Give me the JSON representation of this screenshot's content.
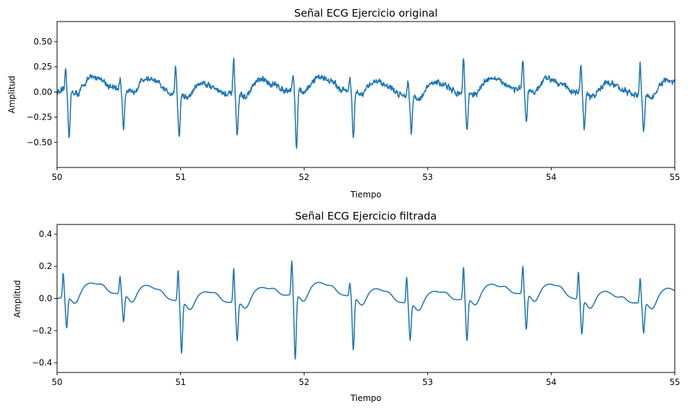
{
  "chart_data": [
    {
      "type": "line",
      "title": "Señal ECG Ejercicio original",
      "xlabel": "Tiempo",
      "ylabel": "Amplitud",
      "xlim": [
        50,
        55
      ],
      "ylim": [
        -0.75,
        0.7
      ],
      "xticks": [
        50,
        51,
        52,
        53,
        54,
        55
      ],
      "yticks": [
        -0.5,
        -0.25,
        0.0,
        0.25,
        0.5
      ],
      "ytick_labels": [
        "−0.50",
        "−0.25",
        "0.00",
        "0.25",
        "0.50"
      ],
      "grid": false,
      "color": "#1f77b4",
      "beats": [
        {
          "t": 50.07,
          "r": 0.22,
          "s": -0.44
        },
        {
          "t": 50.51,
          "r": 0.1,
          "s": -0.38
        },
        {
          "t": 50.96,
          "r": 0.28,
          "s": -0.43
        },
        {
          "t": 51.43,
          "r": 0.36,
          "s": -0.42
        },
        {
          "t": 51.91,
          "r": 0.14,
          "s": -0.58
        },
        {
          "t": 52.37,
          "r": 0.12,
          "s": -0.48
        },
        {
          "t": 52.84,
          "r": 0.13,
          "s": -0.37
        },
        {
          "t": 53.29,
          "r": 0.34,
          "s": -0.37
        },
        {
          "t": 53.77,
          "r": 0.28,
          "s": -0.34
        },
        {
          "t": 54.24,
          "r": 0.29,
          "s": -0.37
        },
        {
          "t": 54.72,
          "r": 0.29,
          "s": -0.37
        }
      ]
    },
    {
      "type": "line",
      "title": "Señal ECG Ejercicio filtrada",
      "xlabel": "Tiempo",
      "ylabel": "Amplitud",
      "xlim": [
        50,
        55
      ],
      "ylim": [
        -0.46,
        0.46
      ],
      "xticks": [
        50,
        51,
        52,
        53,
        54,
        55
      ],
      "yticks": [
        -0.4,
        -0.2,
        0.0,
        0.2,
        0.4
      ],
      "ytick_labels": [
        "−0.4",
        "−0.2",
        "0.0",
        "0.2",
        "0.4"
      ],
      "grid": false,
      "color": "#1f77b4",
      "beats": [
        {
          "t": 50.05,
          "r": 0.15,
          "s": -0.19
        },
        {
          "t": 50.51,
          "r": 0.11,
          "s": -0.17
        },
        {
          "t": 50.98,
          "r": 0.19,
          "s": -0.32
        },
        {
          "t": 51.43,
          "r": 0.21,
          "s": -0.24
        },
        {
          "t": 51.9,
          "r": 0.21,
          "s": -0.4
        },
        {
          "t": 52.37,
          "r": 0.08,
          "s": -0.33
        },
        {
          "t": 52.83,
          "r": 0.16,
          "s": -0.23
        },
        {
          "t": 53.29,
          "r": 0.2,
          "s": -0.26
        },
        {
          "t": 53.77,
          "r": 0.17,
          "s": -0.22
        },
        {
          "t": 54.22,
          "r": 0.17,
          "s": -0.21
        },
        {
          "t": 54.72,
          "r": 0.15,
          "s": -0.19
        }
      ]
    }
  ]
}
